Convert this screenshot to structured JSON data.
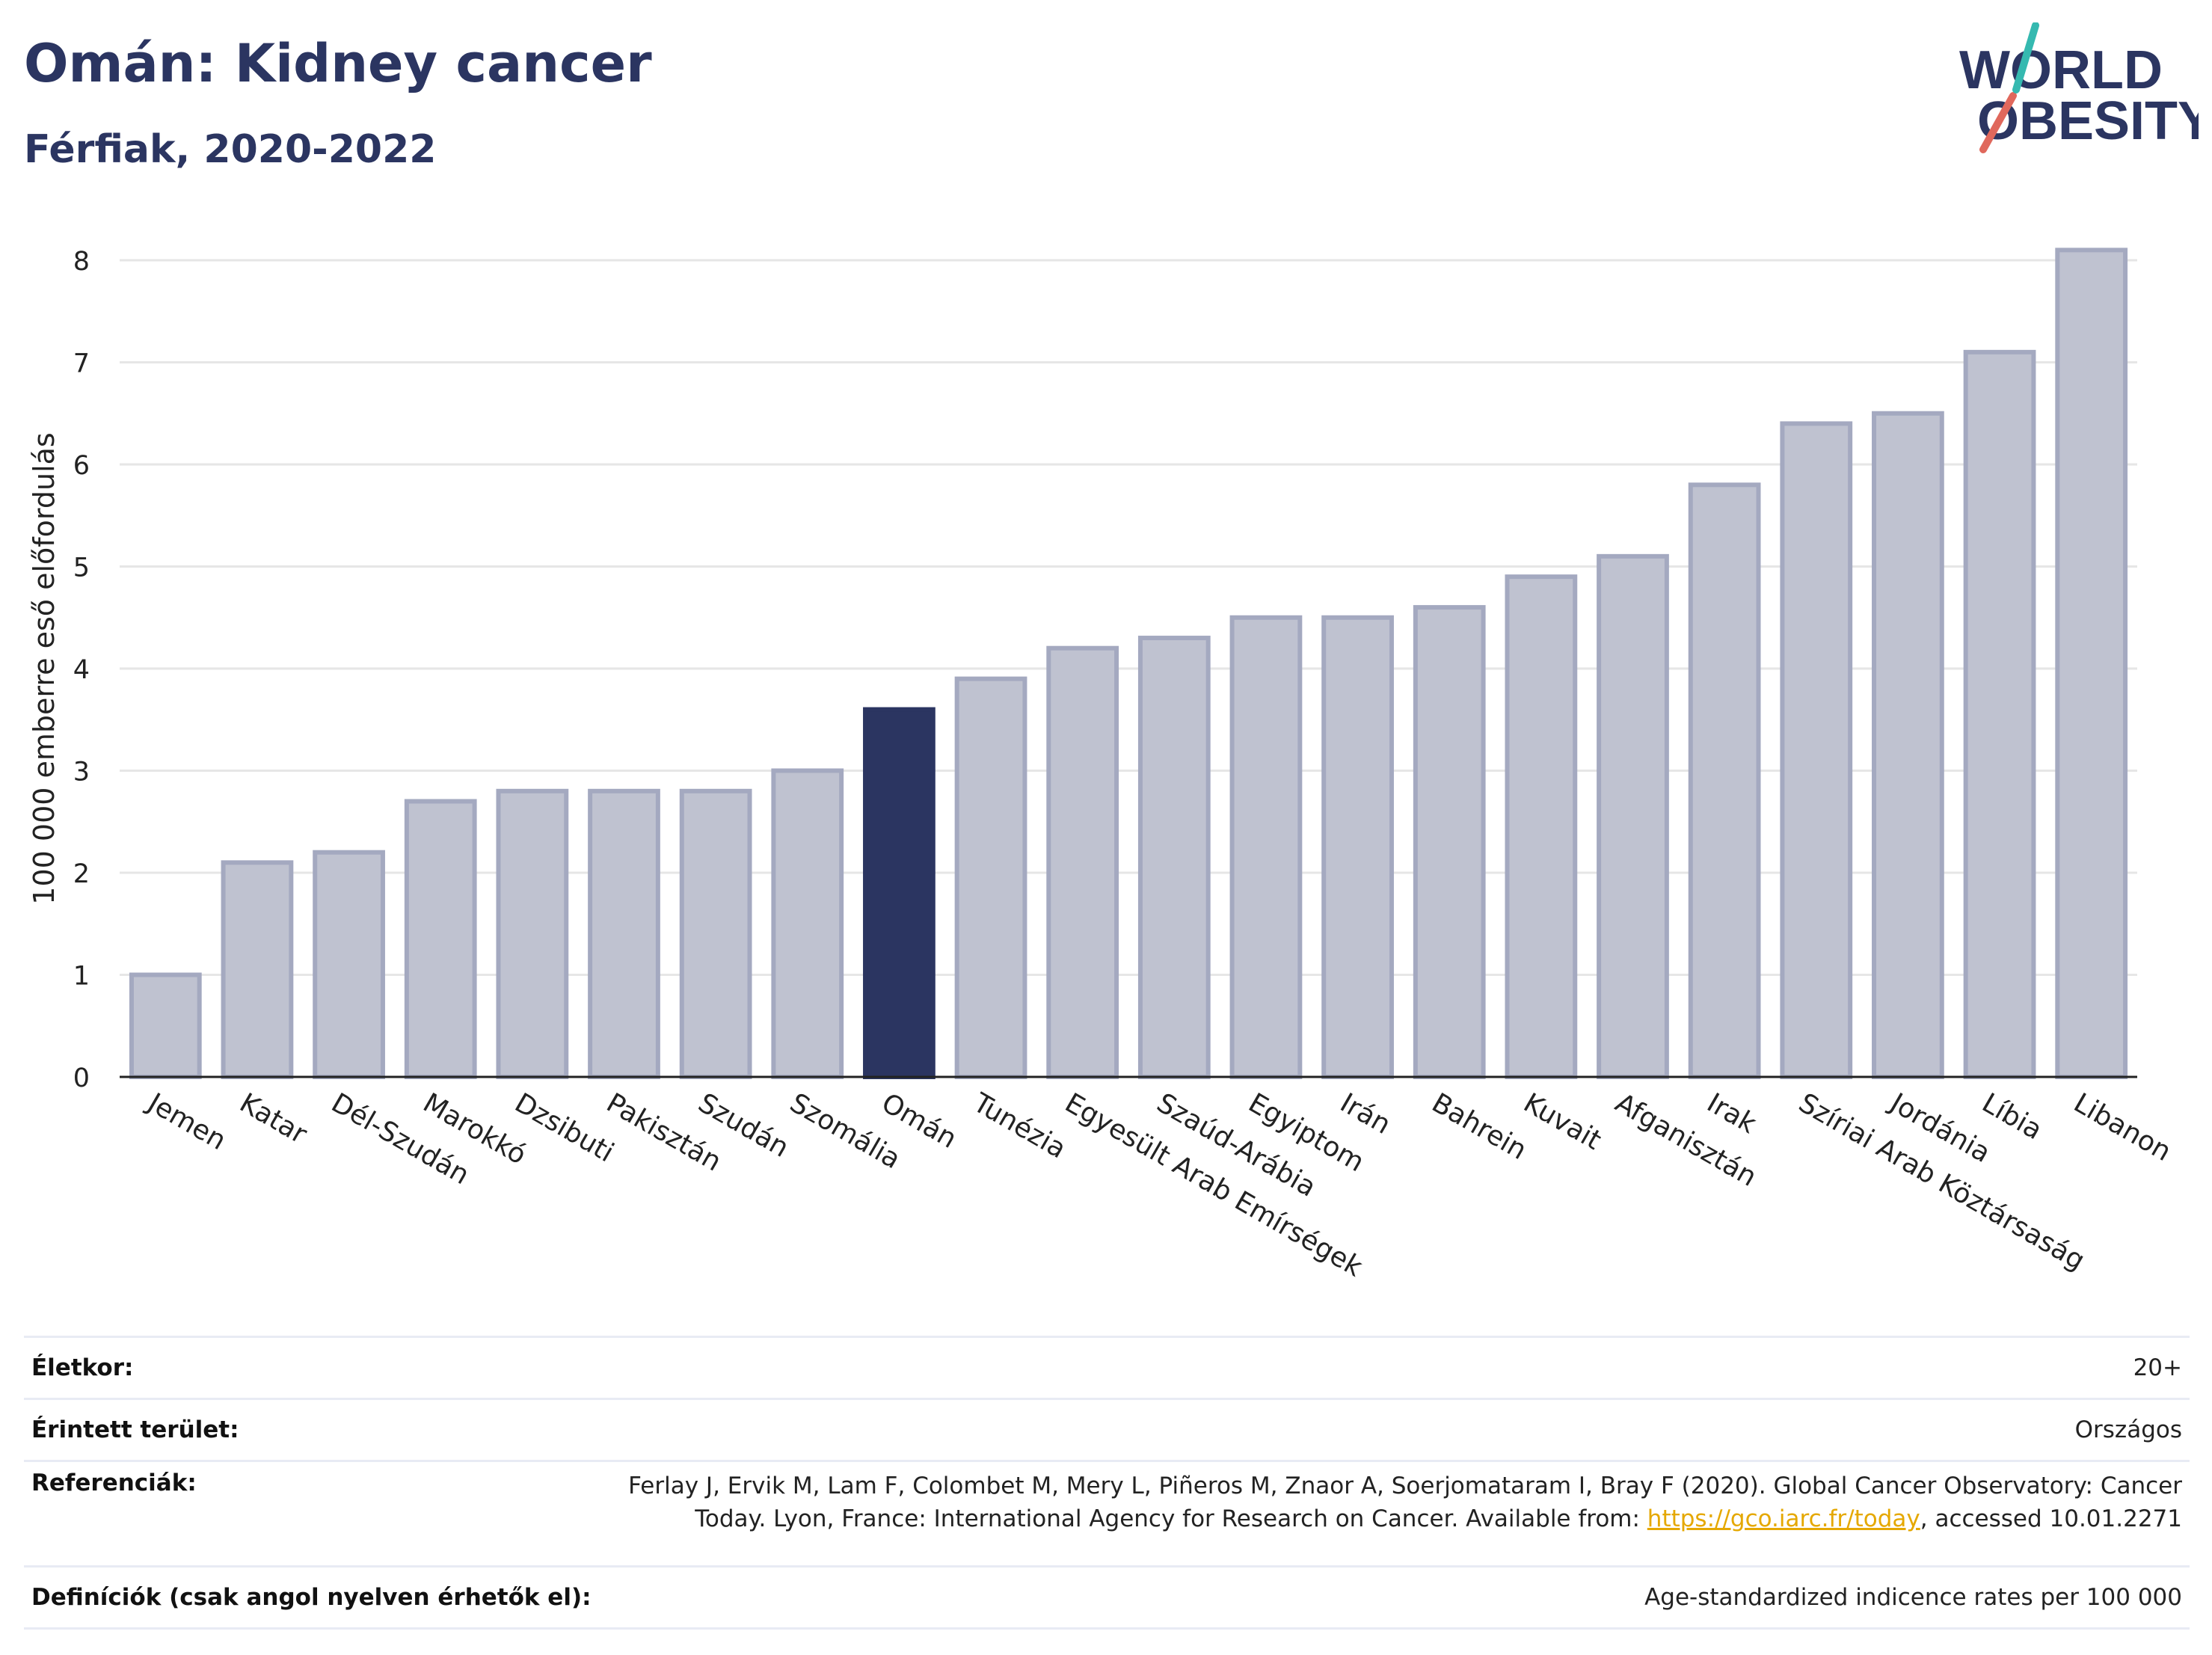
{
  "title": "Omán: Kidney cancer",
  "subtitle": "Férfiak, 2020-2022",
  "logo": {
    "line1": "WORLD",
    "line2": "OBESITY",
    "colors": [
      "#2b3561",
      "#e0685c",
      "#35b9b0"
    ]
  },
  "colors": {
    "bar": "#bfc2d0",
    "bar_stroke": "#a4a9c0",
    "highlight": "#2b3561",
    "grid": "#e6e6e6",
    "axis": "#222222"
  },
  "chart_data": {
    "type": "bar",
    "ylabel": "100 000 emberre eső előfordulás",
    "ylim": [
      0,
      8.4
    ],
    "yticks": [
      0,
      1,
      2,
      3,
      4,
      5,
      6,
      7,
      8
    ],
    "grid": true,
    "highlight": "Omán",
    "categories": [
      "Jemen",
      "Katar",
      "Dél-Szudán",
      "Marokkó",
      "Dzsibuti",
      "Pakisztán",
      "Szudán",
      "Szomália",
      "Omán",
      "Tunézia",
      "Egyesült Arab Emírségek",
      "Szaúd-Arábia",
      "Egyiptom",
      "Irán",
      "Bahrein",
      "Kuvait",
      "Afganisztán",
      "Irak",
      "Szíriai Arab Köztársaság",
      "Jordánia",
      "Líbia",
      "Libanon"
    ],
    "values": [
      1.0,
      2.1,
      2.2,
      2.7,
      2.8,
      2.8,
      2.8,
      3.0,
      3.6,
      3.9,
      4.2,
      4.3,
      4.5,
      4.5,
      4.6,
      4.9,
      5.1,
      5.8,
      6.4,
      6.5,
      7.1,
      8.1
    ]
  },
  "meta": [
    {
      "label": "Életkor:",
      "value": [
        "20+"
      ]
    },
    {
      "label": "Érintett terület:",
      "value": [
        "Országos"
      ]
    },
    {
      "label": "Referenciák:",
      "value": [
        "Ferlay J, Ervik M, Lam F, Colombet M, Mery L, Piñeros M, Znaor A, Soerjomataram I, Bray F (2020). Global Cancer Observatory: Cancer"
      ],
      "value2_prefix": "Today. Lyon, France: International Agency for Research on Cancer. Available from: ",
      "link": "https://gco.iarc.fr/today",
      "value2_suffix": ", accessed 10.01.2271"
    },
    {
      "label": "Definíciók (csak angol nyelven érhetők el):",
      "value": [
        "Age-standardized indicence rates per 100 000"
      ]
    }
  ]
}
